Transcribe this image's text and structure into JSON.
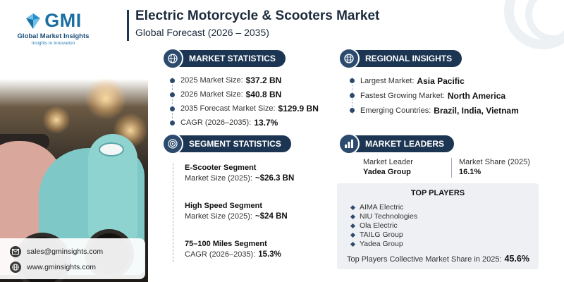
{
  "brand": {
    "logo_text": "GMI",
    "name": "Global Market Insights",
    "tagline": "Insights to Innovation"
  },
  "header": {
    "title": "Electric Motorcycle & Scooters Market",
    "subtitle": "Global Forecast (2026 – 2035)"
  },
  "market_statistics": {
    "heading": "MARKET STATISTICS",
    "icon": "globe-chart-icon",
    "items": [
      {
        "label": "2025 Market Size:",
        "value": "$37.2 BN"
      },
      {
        "label": "2026 Market Size:",
        "value": "$40.8 BN"
      },
      {
        "label": "2035 Forecast Market Size:",
        "value": "$129.9 BN"
      },
      {
        "label": "CAGR (2026–2035):",
        "value": "13.7%"
      }
    ]
  },
  "regional_insights": {
    "heading": "REGIONAL INSIGHTS",
    "icon": "globe-icon",
    "items": [
      {
        "label": "Largest Market:",
        "value": "Asia Pacific"
      },
      {
        "label": "Fastest Growing Market:",
        "value": "North America"
      },
      {
        "label": "Emerging Countries:",
        "value": "Brazil, India, Vietnam"
      }
    ]
  },
  "segment_statistics": {
    "heading": "SEGMENT STATISTICS",
    "icon": "target-icon",
    "items": [
      {
        "title": "E-Scooter Segment",
        "label": "Market Size (2025):",
        "value": "~$26.3 BN"
      },
      {
        "title": "High Speed Segment",
        "label": "Market Size (2025):",
        "value": "~$24 BN"
      },
      {
        "title": "75–100 Miles Segment",
        "label": "CAGR (2026–2035):",
        "value": "15.3%"
      }
    ]
  },
  "market_leaders": {
    "heading": "MARKET LEADERS",
    "icon": "bar-chart-icon",
    "leader_label": "Market Leader",
    "leader_name": "Yadea Group",
    "share_label": "Market Share (2025)",
    "share_value": "16.1%"
  },
  "top_players": {
    "heading": "TOP PLAYERS",
    "players": [
      "AIMA Electric",
      "NIU Technologies",
      "Ola Electric",
      "TAILG Group",
      "Yadea Group"
    ],
    "collective_label": "Top Players Collective Market Share in 2025:",
    "collective_value": "45.6%"
  },
  "contact": {
    "email": "sales@gminsights.com",
    "website": "www.gminsights.com",
    "email_icon": "mail-icon",
    "web_icon": "globe-icon"
  },
  "colors": {
    "navy": "#1c3553",
    "accent": "#2c4a6e",
    "brand_blue": "#1b6fa3"
  }
}
